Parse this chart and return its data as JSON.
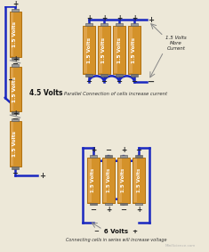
{
  "bg_color": "#ede8d8",
  "battery_color": "#d4922a",
  "battery_highlight": "#e8b060",
  "battery_border": "#b07010",
  "wire_color": "#1a28c0",
  "wire_lw": 1.8,
  "text_color": "#333333",
  "label_color": "#111111",
  "parallel_label": "Parallel Connection of cells increase current",
  "series_label": "Connecting cells in series will increase voltage",
  "voltage_parallel": "1.5 Volts\nMore\nCurrent",
  "voltage_series_left": "4.5 Volts",
  "voltage_series_right": "6 Volts",
  "volt_label": "1.5 Volts",
  "watermark": "MiniScience.com",
  "cap_color_pos": "#999999",
  "cap_color_neg": "#777777"
}
